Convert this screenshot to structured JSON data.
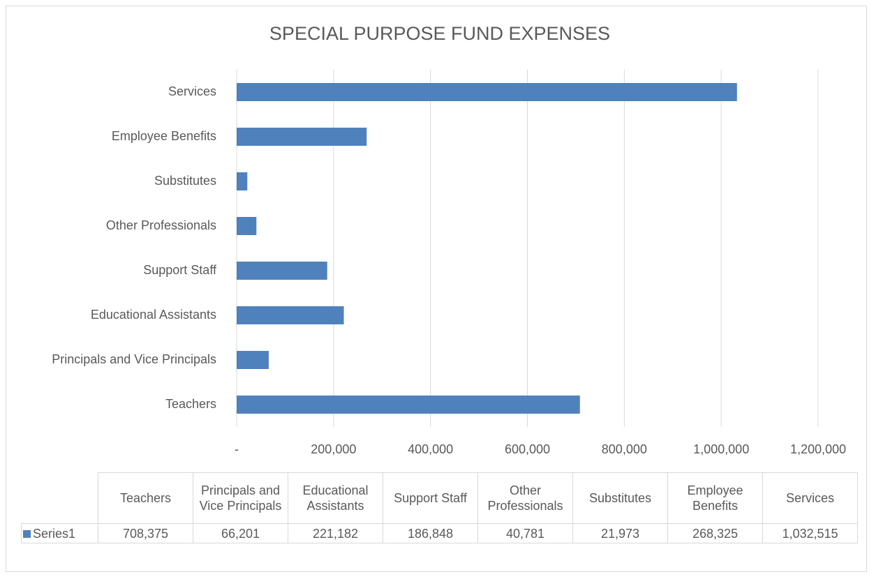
{
  "chart_data": {
    "type": "bar",
    "orientation": "horizontal",
    "title": "SPECIAL PURPOSE FUND EXPENSES",
    "categories": [
      "Teachers",
      "Principals and Vice Principals",
      "Educational Assistants",
      "Support Staff",
      "Other Professionals",
      "Substitutes",
      "Employee Benefits",
      "Services"
    ],
    "series": [
      {
        "name": "Series1",
        "color": "#4f81bd",
        "values": [
          708375,
          66201,
          221182,
          186848,
          40781,
          21973,
          268325,
          1032515
        ],
        "value_labels": [
          "708,375",
          "66,201",
          "221,182",
          "186,848",
          "40,781",
          "21,973",
          "268,325",
          "1,032,515"
        ]
      }
    ],
    "xlim": [
      0,
      1200000
    ],
    "xticks": [
      {
        "value": 0,
        "label": "-"
      },
      {
        "value": 200000,
        "label": "200,000"
      },
      {
        "value": 400000,
        "label": "400,000"
      },
      {
        "value": 600000,
        "label": "600,000"
      },
      {
        "value": 800000,
        "label": "800,000"
      },
      {
        "value": 1000000,
        "label": "1,000,000"
      },
      {
        "value": 1200000,
        "label": "1,200,000"
      }
    ],
    "grid": true,
    "data_table": true
  }
}
